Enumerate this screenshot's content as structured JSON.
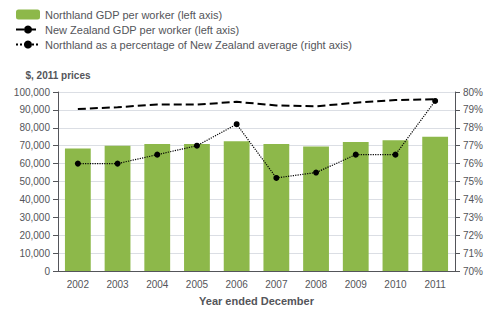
{
  "chart_data": {
    "type": "bar",
    "xlabel": "Year ended December",
    "ylabel": "$, 2011 prices",
    "categories": [
      "2002",
      "2003",
      "2004",
      "2005",
      "2006",
      "2007",
      "2008",
      "2009",
      "2010",
      "2011"
    ],
    "series": [
      {
        "name": "Northland GDP per worker (left axis)",
        "type": "bar",
        "color": "#8db84a",
        "values": [
          68500,
          70000,
          71000,
          71000,
          72500,
          71000,
          69500,
          72000,
          73000,
          75000
        ]
      },
      {
        "name": "New Zealand GDP per worker (left axis)",
        "type": "line",
        "color": "#000000",
        "line_style": "dashed",
        "values": [
          90500,
          91500,
          93000,
          93000,
          94500,
          92500,
          92000,
          94000,
          95500,
          96000
        ]
      },
      {
        "name": "Northland as a percentage of New Zealand average (right axis)",
        "type": "line",
        "color": "#000000",
        "line_style": "dotted",
        "marker": "circle",
        "axis": "y2",
        "values": [
          76.0,
          76.0,
          76.5,
          77.0,
          78.2,
          75.2,
          75.5,
          76.5,
          76.5,
          79.5
        ]
      }
    ],
    "ylim": [
      0,
      100000
    ],
    "yticks": [
      0,
      {
        "value": 10000,
        "label": "10,000"
      },
      {
        "value": 20000,
        "label": "20,000"
      },
      {
        "value": 30000,
        "label": "30,000"
      },
      {
        "value": 40000,
        "label": "40,000"
      },
      {
        "value": 50000,
        "label": "50,000"
      },
      {
        "value": 60000,
        "label": "60,000"
      },
      {
        "value": 70000,
        "label": "70,000"
      },
      {
        "value": 80000,
        "label": "80,000"
      },
      {
        "value": 90000,
        "label": "90,000"
      },
      {
        "value": 100000,
        "label": "100,000"
      }
    ],
    "y2lim": [
      70,
      80
    ],
    "y2ticks": [
      {
        "value": 70,
        "label": "70%"
      },
      {
        "value": 71,
        "label": "71%"
      },
      {
        "value": 72,
        "label": "72%"
      },
      {
        "value": 73,
        "label": "73%"
      },
      {
        "value": 74,
        "label": "74%"
      },
      {
        "value": 75,
        "label": "75%"
      },
      {
        "value": 76,
        "label": "76%"
      },
      {
        "value": 77,
        "label": "77%"
      },
      {
        "value": 78,
        "label": "78%"
      },
      {
        "value": 79,
        "label": "79%"
      },
      {
        "value": 80,
        "label": "80%"
      }
    ],
    "grid": true,
    "legend": "top left"
  }
}
